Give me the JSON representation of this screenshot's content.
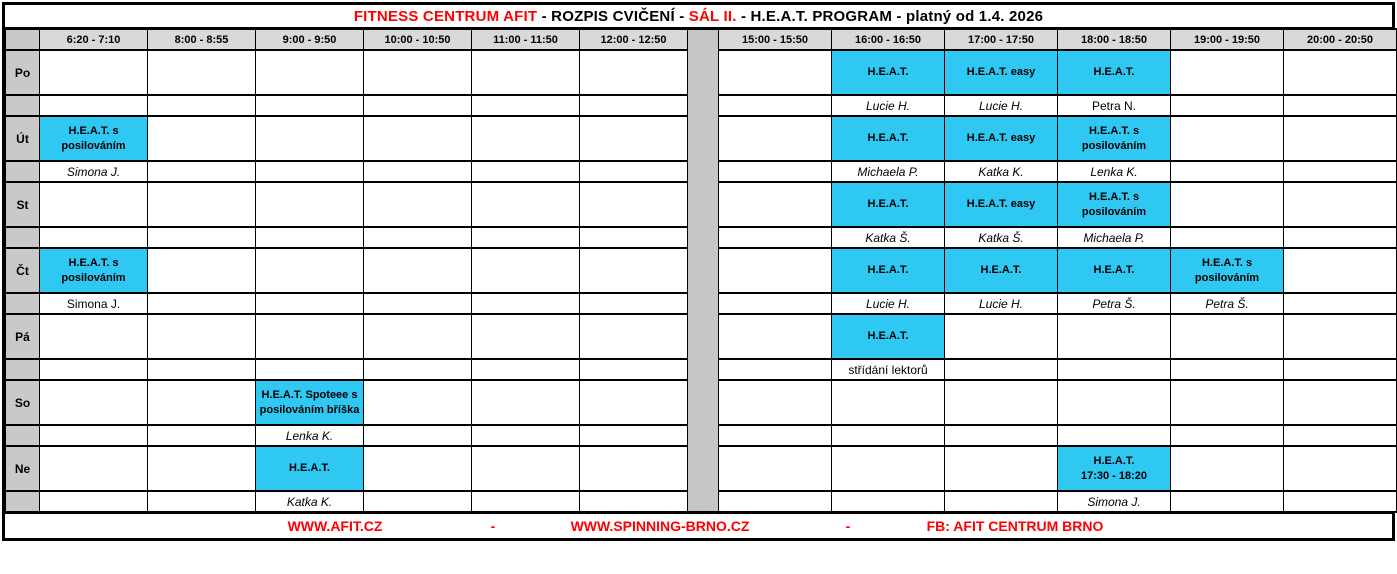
{
  "title": {
    "part1": "FITNESS CENTRUM AFIT",
    "part2": " - ROZPIS CVIČENÍ - ",
    "part3": "SÁL II.",
    "part4": " - H.E.A.T. PROGRAM - platný od 1.4. 2026"
  },
  "time_slots": [
    "6:20 - 7:10",
    "8:00 - 8:55",
    "9:00 - 9:50",
    "10:00 - 10:50",
    "11:00 - 11:50",
    "12:00 - 12:50",
    "15:00 - 15:50",
    "16:00 - 16:50",
    "17:00 - 17:50",
    "18:00 - 18:50",
    "19:00 - 19:50",
    "20:00 - 20:50"
  ],
  "days": [
    {
      "label": "Po",
      "slots": [
        {},
        {},
        {},
        {},
        {},
        {},
        {},
        {
          "title": "H.E.A.T.",
          "lector": "Lucie H.",
          "lector_style": "italic"
        },
        {
          "title": "H.E.A.T. easy",
          "lector": "Lucie H.",
          "lector_style": "italic"
        },
        {
          "title": "H.E.A.T.",
          "lector": "Petra N.",
          "lector_style": "normal"
        },
        {},
        {}
      ]
    },
    {
      "label": "Út",
      "slots": [
        {
          "title": "H.E.A.T. s posilováním",
          "lector": "Simona J.",
          "lector_style": "italic"
        },
        {},
        {},
        {},
        {},
        {},
        {},
        {
          "title": "H.E.A.T.",
          "lector": "Michaela P.",
          "lector_style": "italic"
        },
        {
          "title": "H.E.A.T. easy",
          "lector": "Katka K.",
          "lector_style": "italic"
        },
        {
          "title": "H.E.A.T. s posilováním",
          "lector": "Lenka K.",
          "lector_style": "italic"
        },
        {},
        {}
      ]
    },
    {
      "label": "St",
      "slots": [
        {},
        {},
        {},
        {},
        {},
        {},
        {},
        {
          "title": "H.E.A.T.",
          "lector": "Katka Š.",
          "lector_style": "italic"
        },
        {
          "title": "H.E.A.T. easy",
          "lector": "Katka Š.",
          "lector_style": "italic"
        },
        {
          "title": "H.E.A.T. s posilováním",
          "lector": "Michaela P.",
          "lector_style": "italic"
        },
        {},
        {}
      ]
    },
    {
      "label": "Čt",
      "slots": [
        {
          "title": "H.E.A.T. s posilováním",
          "lector": "Simona J.",
          "lector_style": "normal"
        },
        {},
        {},
        {},
        {},
        {},
        {},
        {
          "title": "H.E.A.T.",
          "lector": "Lucie H.",
          "lector_style": "italic"
        },
        {
          "title": "H.E.A.T.",
          "lector": "Lucie H.",
          "lector_style": "italic"
        },
        {
          "title": "H.E.A.T.",
          "lector": "Petra Š.",
          "lector_style": "italic"
        },
        {
          "title": "H.E.A.T. s posilováním",
          "lector": "Petra Š.",
          "lector_style": "italic"
        },
        {}
      ]
    },
    {
      "label": "Pá",
      "slots": [
        {},
        {},
        {},
        {},
        {},
        {},
        {},
        {
          "title": "H.E.A.T.",
          "lector": "střídání lektorů",
          "lector_style": "normal"
        },
        {},
        {},
        {},
        {}
      ]
    },
    {
      "label": "So",
      "slots": [
        {},
        {},
        {
          "title": "H.E.A.T. Spoteee s posilováním bříška",
          "lector": "Lenka K.",
          "lector_style": "italic"
        },
        {},
        {},
        {},
        {},
        {},
        {},
        {},
        {},
        {}
      ]
    },
    {
      "label": "Ne",
      "slots": [
        {},
        {},
        {
          "title": "H.E.A.T.",
          "lector": "Katka K.",
          "lector_style": "italic"
        },
        {},
        {},
        {},
        {},
        {},
        {},
        {
          "title": "H.E.A.T.",
          "sub": "17:30 - 18:20",
          "lector": "Simona J.",
          "lector_style": "italic"
        },
        {},
        {}
      ]
    }
  ],
  "footer": {
    "link1": "WWW.AFIT.CZ",
    "sep1": "-",
    "link2": "WWW.SPINNING-BRNO.CZ",
    "sep2": "-",
    "link3": "FB: AFIT CENTRUM BRNO"
  },
  "colors": {
    "event_bg": "#2ec8f2",
    "header_bg": "#d9d9d9",
    "day_column_bg": "#c9c9c9",
    "gap_bg": "#c6c6c6",
    "accent_red": "#ff0000",
    "border": "#000000"
  }
}
